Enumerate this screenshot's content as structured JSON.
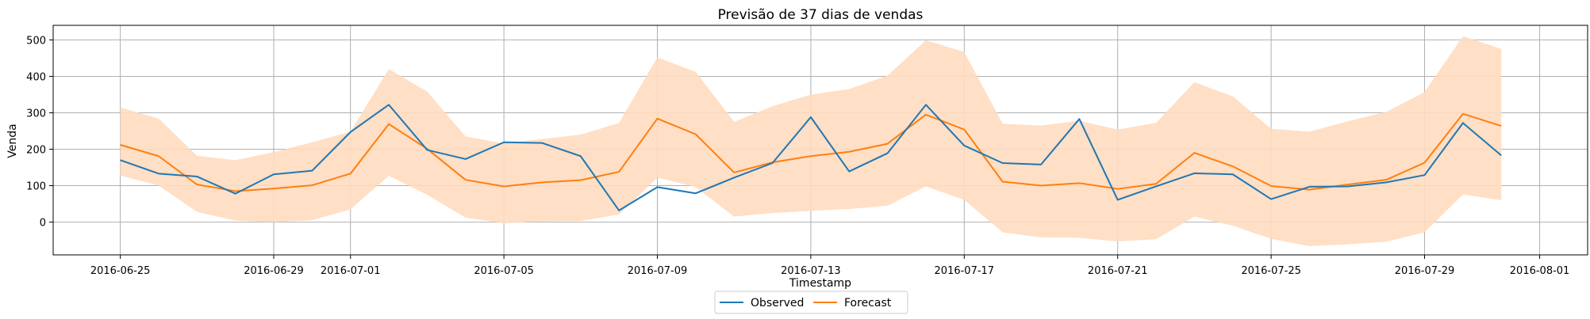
{
  "chart_data": {
    "type": "line",
    "title": "Previsão de 37 dias de vendas",
    "xlabel": "Timestamp",
    "ylabel": "Venda",
    "x_start": "2016-06-25",
    "x": [
      "2016-06-25",
      "2016-06-26",
      "2016-06-27",
      "2016-06-28",
      "2016-06-29",
      "2016-06-30",
      "2016-07-01",
      "2016-07-02",
      "2016-07-03",
      "2016-07-04",
      "2016-07-05",
      "2016-07-06",
      "2016-07-07",
      "2016-07-08",
      "2016-07-09",
      "2016-07-10",
      "2016-07-11",
      "2016-07-12",
      "2016-07-13",
      "2016-07-14",
      "2016-07-15",
      "2016-07-16",
      "2016-07-17",
      "2016-07-18",
      "2016-07-19",
      "2016-07-20",
      "2016-07-21",
      "2016-07-22",
      "2016-07-23",
      "2016-07-24",
      "2016-07-25",
      "2016-07-26",
      "2016-07-27",
      "2016-07-28",
      "2016-07-29",
      "2016-07-30",
      "2016-07-31"
    ],
    "xlim": [
      "2016-06-23T06:00",
      "2016-08-02T06:00"
    ],
    "ylim": [
      -90,
      540
    ],
    "x_ticks": [
      "2016-06-25",
      "2016-06-29",
      "2016-07-01",
      "2016-07-05",
      "2016-07-09",
      "2016-07-13",
      "2016-07-17",
      "2016-07-21",
      "2016-07-25",
      "2016-07-29",
      "2016-08-01"
    ],
    "y_ticks": [
      0,
      100,
      200,
      300,
      400,
      500
    ],
    "grid": true,
    "legend_position": "bottom-center",
    "series": [
      {
        "name": "Observed",
        "color": "#1f77b4",
        "values": [
          170,
          133,
          125,
          78,
          131,
          141,
          247,
          322,
          198,
          173,
          219,
          217,
          181,
          32,
          96,
          79,
          122,
          162,
          288,
          139,
          189,
          322,
          210,
          162,
          158,
          283,
          61,
          98,
          134,
          131,
          63,
          97,
          98,
          109,
          129,
          272,
          183
        ]
      },
      {
        "name": "Forecast",
        "color": "#ff7f0e",
        "values": [
          212,
          181,
          103,
          85,
          92,
          101,
          133,
          269,
          201,
          116,
          98,
          109,
          115,
          138,
          284,
          241,
          136,
          164,
          181,
          193,
          215,
          295,
          254,
          111,
          100,
          107,
          91,
          105,
          190,
          153,
          99,
          89,
          103,
          116,
          163,
          297,
          264
        ]
      }
    ],
    "interval": {
      "color": "#ffdcbf",
      "lower": [
        128,
        100,
        28,
        4,
        0,
        5,
        35,
        127,
        75,
        12,
        -3,
        2,
        3,
        21,
        122,
        96,
        15,
        25,
        31,
        36,
        45,
        98,
        61,
        -28,
        -42,
        -43,
        -53,
        -47,
        15,
        -10,
        -46,
        -66,
        -61,
        -54,
        -28,
        76,
        60
      ],
      "upper": [
        315,
        284,
        182,
        170,
        192,
        219,
        248,
        420,
        358,
        235,
        216,
        228,
        240,
        272,
        452,
        412,
        275,
        318,
        350,
        365,
        402,
        499,
        467,
        270,
        265,
        278,
        254,
        272,
        384,
        345,
        256,
        248,
        277,
        302,
        357,
        510,
        475
      ]
    }
  }
}
